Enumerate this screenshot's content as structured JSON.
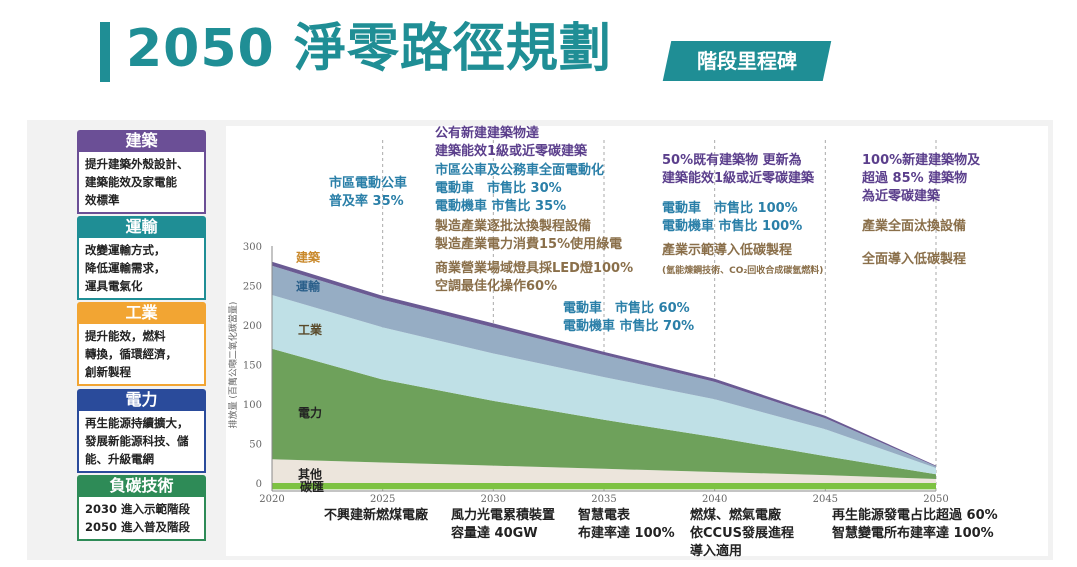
{
  "header": {
    "title": "2050 淨零路徑規劃",
    "badge": "階段里程碑"
  },
  "categories": [
    {
      "name": "建築",
      "desc": "提升建築外殼設計、\n建築能效及家電能\n效標準",
      "color": "#6b4f96"
    },
    {
      "name": "運輸",
      "desc": "改變運輸方式，\n降低運輸需求，\n運具電氣化",
      "color": "#1f8e95"
    },
    {
      "name": "工業",
      "desc": "提升能效，燃料\n轉換，循環經濟，\n創新製程",
      "color": "#f2a533"
    },
    {
      "name": "電力",
      "desc": "再生能源持續擴大，\n發展新能源科技、儲\n能、升級電網",
      "color": "#2a4b9b"
    },
    {
      "name": "負碳技術",
      "desc": "2030 進入示範階段\n2050 進入普及階段",
      "color": "#2e8b57"
    }
  ],
  "annotations": {
    "a2025": "市區電動公車\n普及率 35%",
    "a2030_1": "公有新建建築物達\n建築能效1級或近零碳建築",
    "a2030_2": "市區公車及公務車全面電動化\n電動車　市售比 30%\n電動機車 市售比 35%",
    "a2030_3": "製造產業逐批汰換製程設備\n製造產業電力消費15%使用綠電",
    "a2030_4": "商業營業場域燈具採LED燈100%\n空調最佳化操作60%",
    "a2035": "電動車　市售比 60%\n電動機車 市售比 70%",
    "a2040_1": "50%既有建築物 更新為\n建築能效1級或近零碳建築",
    "a2040_2": "電動車　市售比 100%\n電動機車 市售比 100%",
    "a2040_3": "產業示範導入低碳製程",
    "a2040_4": "(氫能煉鋼技術、CO₂回收合成碳氫燃料)",
    "a2050_1": "100%新建建築物及\n超過 85% 建築物\n為近零碳建築",
    "a2050_2": "產業全面汰換設備",
    "a2050_3": "全面導入低碳製程"
  },
  "bottom_notes": [
    "不興建新燃煤電廠",
    "風力光電累積裝置\n容量達 40GW",
    "智慧電表\n布建率達 100%",
    "燃煤、燃氣電廠\n依CCUS發展進程\n導入適用",
    "再生能源發電占比超過 60%\n智慧變電所布建率達 100%"
  ],
  "chart_data": {
    "type": "area",
    "title": "",
    "ylabel": "排放量 (百萬公噸二氧化碳當量)",
    "ylim": [
      0,
      300
    ],
    "y_ticks": [
      "0",
      "50",
      "100",
      "150",
      "200",
      "250",
      "300"
    ],
    "x": [
      2020,
      2025,
      2030,
      2035,
      2040,
      2045,
      2050
    ],
    "x_tick_labels": [
      "2020",
      "2025",
      "2030",
      "2035",
      "2040",
      "2045",
      "2050"
    ],
    "series": [
      {
        "name": "碳匯",
        "values": [
          -8,
          -8,
          -8,
          -8,
          -8,
          -8,
          -8
        ],
        "color": "#7dc242"
      },
      {
        "name": "其他",
        "values": [
          30,
          26,
          22,
          18,
          14,
          10,
          5
        ],
        "color": "#ece5dc"
      },
      {
        "name": "電力",
        "values": [
          140,
          105,
          82,
          62,
          44,
          24,
          6
        ],
        "color": "#6ea15b"
      },
      {
        "name": "工業",
        "values": [
          68,
          66,
          60,
          54,
          48,
          34,
          8
        ],
        "color": "#bfe0e6"
      },
      {
        "name": "運輸",
        "values": [
          37,
          35,
          33,
          28,
          22,
          14,
          2
        ],
        "color": "#96adc4"
      },
      {
        "name": "建築",
        "values": [
          5,
          5,
          5,
          4,
          4,
          3,
          1
        ],
        "color": "#6a5a93"
      }
    ]
  }
}
